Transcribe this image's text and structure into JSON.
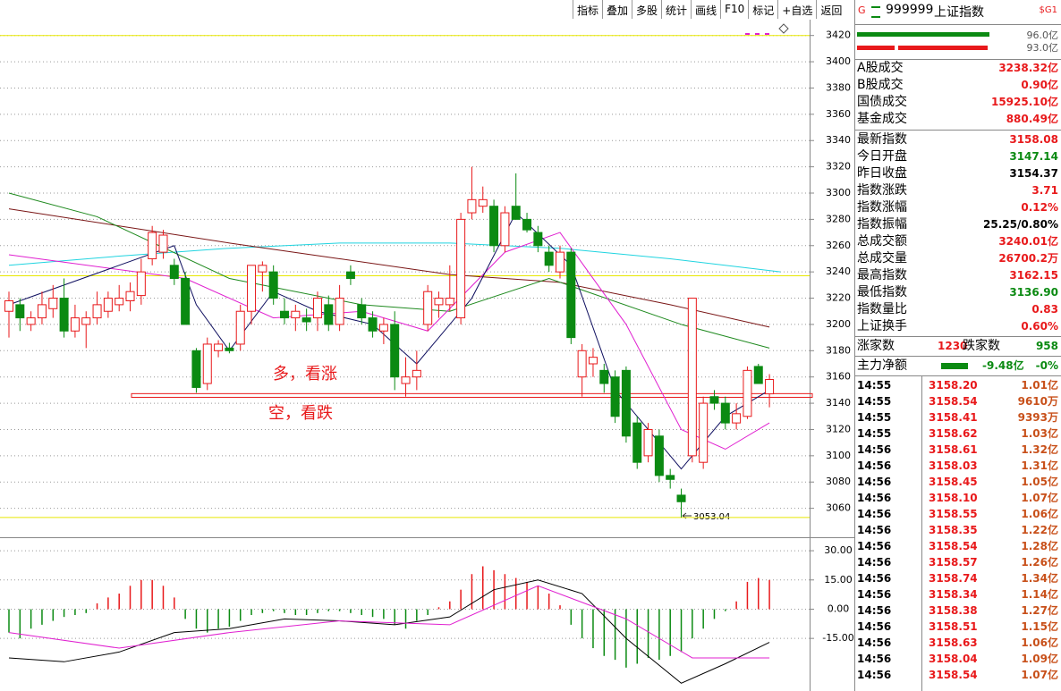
{
  "toolbar": {
    "buttons": [
      "指标",
      "叠加",
      "多股",
      "统计",
      "画线",
      "F10",
      "标记",
      "+自选",
      "返回"
    ]
  },
  "chart": {
    "type": "candlestick",
    "ylim": [
      3040,
      3430
    ],
    "yticks": [
      3060,
      3080,
      3100,
      3120,
      3140,
      3160,
      3180,
      3200,
      3220,
      3240,
      3260,
      3280,
      3300,
      3320,
      3340,
      3360,
      3380,
      3400,
      3420
    ],
    "candles": [
      [
        3210,
        3225,
        3190,
        3218
      ],
      [
        3215,
        3220,
        3195,
        3205
      ],
      [
        3200,
        3210,
        3195,
        3205
      ],
      [
        3205,
        3225,
        3200,
        3215
      ],
      [
        3212,
        3230,
        3205,
        3220
      ],
      [
        3220,
        3235,
        3190,
        3195
      ],
      [
        3195,
        3215,
        3190,
        3205
      ],
      [
        3200,
        3210,
        3182,
        3205
      ],
      [
        3205,
        3225,
        3200,
        3215
      ],
      [
        3210,
        3225,
        3205,
        3220
      ],
      [
        3215,
        3230,
        3210,
        3220
      ],
      [
        3218,
        3232,
        3210,
        3225
      ],
      [
        3222,
        3250,
        3215,
        3240
      ],
      [
        3250,
        3275,
        3245,
        3270
      ],
      [
        3255,
        3272,
        3250,
        3268
      ],
      [
        3245,
        3250,
        3230,
        3235
      ],
      [
        3235,
        3240,
        3200,
        3200
      ],
      [
        3180,
        3182,
        3148,
        3152
      ],
      [
        3155,
        3190,
        3150,
        3185
      ],
      [
        3180,
        3188,
        3175,
        3185
      ],
      [
        3182,
        3186,
        3178,
        3180
      ],
      [
        3185,
        3215,
        3180,
        3210
      ],
      [
        3210,
        3245,
        3200,
        3245
      ],
      [
        3240,
        3248,
        3225,
        3245
      ],
      [
        3240,
        3245,
        3215,
        3220
      ],
      [
        3210,
        3220,
        3200,
        3205
      ],
      [
        3205,
        3215,
        3195,
        3210
      ],
      [
        3205,
        3212,
        3195,
        3202
      ],
      [
        3205,
        3225,
        3195,
        3220
      ],
      [
        3215,
        3222,
        3195,
        3200
      ],
      [
        3200,
        3230,
        3195,
        3220
      ],
      [
        3240,
        3245,
        3230,
        3235
      ],
      [
        3215,
        3220,
        3200,
        3205
      ],
      [
        3205,
        3210,
        3190,
        3195
      ],
      [
        3195,
        3205,
        3185,
        3200
      ],
      [
        3200,
        3210,
        3150,
        3160
      ],
      [
        3155,
        3175,
        3145,
        3160
      ],
      [
        3160,
        3180,
        3150,
        3165
      ],
      [
        3200,
        3230,
        3195,
        3225
      ],
      [
        3215,
        3225,
        3205,
        3220
      ],
      [
        3215,
        3245,
        3210,
        3220
      ],
      [
        3205,
        3285,
        3200,
        3280
      ],
      [
        3285,
        3320,
        3280,
        3295
      ],
      [
        3290,
        3305,
        3285,
        3295
      ],
      [
        3290,
        3295,
        3255,
        3260
      ],
      [
        3260,
        3290,
        3255,
        3285
      ],
      [
        3290,
        3315,
        3280,
        3280
      ],
      [
        3280,
        3285,
        3270,
        3272
      ],
      [
        3270,
        3275,
        3255,
        3260
      ],
      [
        3255,
        3260,
        3240,
        3245
      ],
      [
        3240,
        3260,
        3235,
        3255
      ],
      [
        3255,
        3258,
        3185,
        3190
      ],
      [
        3160,
        3185,
        3145,
        3180
      ],
      [
        3170,
        3182,
        3160,
        3175
      ],
      [
        3165,
        3170,
        3148,
        3155
      ],
      [
        3160,
        3165,
        3125,
        3130
      ],
      [
        3165,
        3168,
        3110,
        3115
      ],
      [
        3125,
        3130,
        3090,
        3095
      ],
      [
        3100,
        3125,
        3095,
        3120
      ],
      [
        3115,
        3120,
        3080,
        3085
      ],
      [
        3085,
        3090,
        3075,
        3082
      ],
      [
        3070,
        3075,
        3053.04,
        3065
      ],
      [
        3100,
        3220,
        3095,
        3220
      ],
      [
        3095,
        3145,
        3090,
        3140
      ],
      [
        3145,
        3150,
        3135,
        3140
      ],
      [
        3140,
        3145,
        3120,
        3125
      ],
      [
        3125,
        3140,
        3120,
        3132
      ],
      [
        3130,
        3168,
        3128,
        3165
      ],
      [
        3168,
        3170,
        3155,
        3155
      ],
      [
        3147.14,
        3162.15,
        3136.9,
        3158.08
      ]
    ],
    "up_color": "#e8191b",
    "down_color": "#0b8a12",
    "ma": [
      {
        "color": "#20d4e0",
        "x": [
          0,
          10,
          20,
          30,
          40,
          50,
          60,
          70
        ],
        "values": [
          3245,
          3252,
          3258,
          3262,
          3262,
          3258,
          3250,
          3240
        ]
      },
      {
        "color": "#7a1616",
        "x": [
          0,
          10,
          20,
          30,
          40,
          50,
          60,
          69
        ],
        "values": [
          3288,
          3275,
          3262,
          3250,
          3238,
          3232,
          3215,
          3198
        ]
      },
      {
        "color": "#1f8a1f",
        "x": [
          0,
          8,
          20,
          32,
          40,
          49,
          61,
          69
        ],
        "values": [
          3300,
          3282,
          3235,
          3215,
          3210,
          3235,
          3200,
          3182
        ]
      },
      {
        "color": "#e020d0",
        "x": [
          0,
          16,
          24,
          32,
          38,
          45,
          50,
          56,
          61,
          65,
          69
        ],
        "values": [
          3253,
          3235,
          3205,
          3210,
          3195,
          3255,
          3270,
          3200,
          3120,
          3105,
          3125
        ]
      },
      {
        "color": "#101060",
        "x": [
          0,
          15,
          17,
          20,
          24,
          28,
          33,
          37,
          42,
          46,
          51,
          55,
          61,
          65,
          69
        ],
        "values": [
          3215,
          3260,
          3215,
          3180,
          3225,
          3210,
          3200,
          3170,
          3220,
          3285,
          3245,
          3150,
          3090,
          3130,
          3150
        ]
      }
    ],
    "hlines": [
      {
        "value": 3420,
        "color": "#e8e800"
      },
      {
        "value": 3237,
        "color": "#e8e800"
      },
      {
        "value": 3053.04,
        "color": "#e8e800"
      }
    ],
    "support": [
      3144.5,
      3147.3
    ],
    "support_color": "#e8191b",
    "annotations": [
      "多，看涨",
      "空，看跌"
    ],
    "low_label": "3053.04",
    "macd": {
      "ylim": [
        -42,
        36
      ],
      "yticks": [
        {
          "value": 30,
          "label": "30.00"
        },
        {
          "value": 15,
          "label": "15.00"
        },
        {
          "value": 0,
          "label": "0.00"
        },
        {
          "value": -15,
          "label": "-15.00"
        }
      ],
      "hist": [
        -12,
        -15,
        -10,
        -8,
        -6,
        -4,
        -3,
        -2,
        3,
        6,
        8,
        12,
        15,
        15,
        12,
        6,
        -5,
        -10,
        -12,
        -10,
        -9,
        -6,
        -3,
        -2,
        -1,
        -2,
        -3,
        -3,
        -2,
        -1,
        -1,
        -2,
        -3,
        -4,
        -5,
        -8,
        -10,
        -6,
        -3,
        1,
        4,
        10,
        18,
        22,
        20,
        18,
        16,
        14,
        12,
        8,
        2,
        -8,
        -15,
        -20,
        -24,
        -26,
        -30,
        -28,
        -25,
        -26,
        -24,
        -22,
        -15,
        -10,
        -5,
        -1,
        4,
        14,
        16,
        15
      ],
      "lines": [
        {
          "color": "#000000",
          "x": [
            0,
            5,
            10,
            15,
            20,
            25,
            30,
            35,
            40,
            44,
            48,
            52,
            56,
            61,
            65,
            69
          ],
          "values": [
            -25,
            -27,
            -22,
            -12,
            -10,
            -5,
            -6,
            -8,
            -4,
            10,
            15,
            8,
            -15,
            -38,
            -28,
            -17
          ]
        },
        {
          "color": "#e020d0",
          "x": [
            0,
            10,
            20,
            30,
            40,
            48,
            56,
            62,
            69
          ],
          "values": [
            -12,
            -20,
            -12,
            -6,
            -8,
            12,
            -5,
            -25,
            -25
          ]
        }
      ]
    }
  },
  "panel": {
    "icon": "G",
    "code": "999999",
    "name": "上证指数",
    "tag": "$G1",
    "bar_labels": [
      "96.0亿",
      "93.0亿"
    ],
    "info": [
      {
        "label": "A股成交",
        "value": "3238.32亿",
        "color": "#e8191b"
      },
      {
        "label": "B股成交",
        "value": "0.90亿",
        "color": "#e8191b"
      },
      {
        "label": "国债成交",
        "value": "15925.10亿",
        "color": "#e8191b"
      },
      {
        "label": "基金成交",
        "value": "880.49亿",
        "color": "#e8191b"
      },
      {
        "label": "最新指数",
        "value": "3158.08",
        "color": "#e8191b"
      },
      {
        "label": "今日开盘",
        "value": "3147.14",
        "color": "#0b8a12"
      },
      {
        "label": "昨日收盘",
        "value": "3154.37",
        "color": "#000000"
      },
      {
        "label": "指数涨跌",
        "value": "3.71",
        "color": "#e8191b"
      },
      {
        "label": "指数涨幅",
        "value": "0.12%",
        "color": "#e8191b"
      },
      {
        "label": "指数振幅",
        "value": "25.25/0.80%",
        "color": "#000000"
      },
      {
        "label": "总成交额",
        "value": "3240.01亿",
        "color": "#e8191b"
      },
      {
        "label": "总成交量",
        "value": "26700.2万",
        "color": "#e8191b"
      },
      {
        "label": "最高指数",
        "value": "3162.15",
        "color": "#e8191b"
      },
      {
        "label": "最低指数",
        "value": "3136.90",
        "color": "#0b8a12"
      },
      {
        "label": "指数量比",
        "value": "0.83",
        "color": "#e8191b"
      },
      {
        "label": "上证换手",
        "value": "0.60%",
        "color": "#e8191b"
      }
    ],
    "breadth": {
      "up_label": "涨家数",
      "up": "1230",
      "down_label": "跌家数",
      "down": "958"
    },
    "flow": {
      "label": "主力净额",
      "value": "-9.48亿",
      "pct": "-0%"
    },
    "trades": [
      [
        "14:55",
        "3158.20",
        "1.01亿"
      ],
      [
        "14:55",
        "3158.54",
        "9610万"
      ],
      [
        "14:55",
        "3158.41",
        "9393万"
      ],
      [
        "14:55",
        "3158.62",
        "1.03亿"
      ],
      [
        "14:56",
        "3158.61",
        "1.32亿"
      ],
      [
        "14:56",
        "3158.03",
        "1.31亿"
      ],
      [
        "14:56",
        "3158.45",
        "1.05亿"
      ],
      [
        "14:56",
        "3158.10",
        "1.07亿"
      ],
      [
        "14:56",
        "3158.55",
        "1.06亿"
      ],
      [
        "14:56",
        "3158.35",
        "1.22亿"
      ],
      [
        "14:56",
        "3158.54",
        "1.28亿"
      ],
      [
        "14:56",
        "3158.57",
        "1.26亿"
      ],
      [
        "14:56",
        "3158.74",
        "1.34亿"
      ],
      [
        "14:56",
        "3158.34",
        "1.14亿"
      ],
      [
        "14:56",
        "3158.38",
        "1.27亿"
      ],
      [
        "14:56",
        "3158.51",
        "1.15亿"
      ],
      [
        "14:56",
        "3158.63",
        "1.06亿"
      ],
      [
        "14:56",
        "3158.04",
        "1.09亿"
      ],
      [
        "14:56",
        "3158.54",
        "1.07亿"
      ]
    ]
  }
}
